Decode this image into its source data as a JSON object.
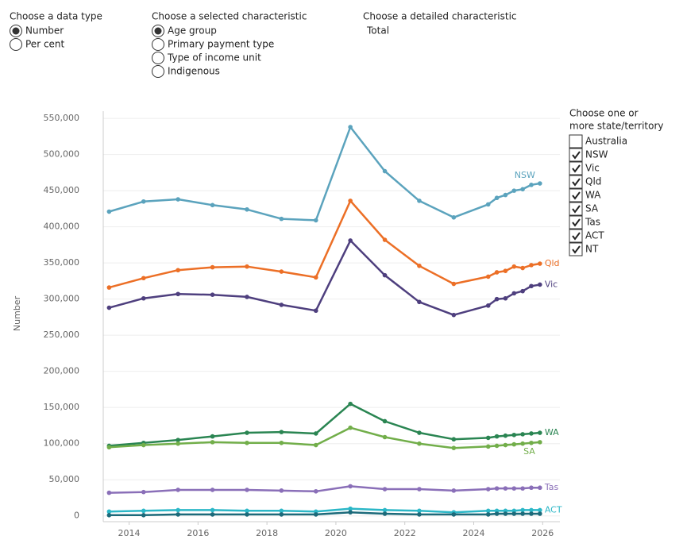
{
  "controls": {
    "data_type": {
      "title": "Choose a data type",
      "options": [
        "Number",
        "Per cent"
      ],
      "selected": 0
    },
    "characteristic": {
      "title": "Choose a selected characteristic",
      "options": [
        "Age group",
        "Primary payment type",
        "Type of income unit",
        "Indigenous"
      ],
      "selected": 0
    },
    "detailed": {
      "title": "Choose a detailed characteristic",
      "value": "Total"
    },
    "states": {
      "title_lines": [
        "Choose one or",
        "more state/territory"
      ],
      "all_option": "Australia",
      "all_checked": false
    }
  },
  "chart_data": {
    "type": "line",
    "y_label": "Number",
    "grid": true,
    "x": [
      2013.42,
      2014.42,
      2015.42,
      2016.42,
      2017.42,
      2018.42,
      2019.42,
      2020.42,
      2021.42,
      2022.42,
      2023.42,
      2024.42,
      2024.67,
      2024.92,
      2025.17,
      2025.42,
      2025.67,
      2025.92
    ],
    "xlim": [
      2013.25,
      2026.5
    ],
    "xticks": [
      2014,
      2016,
      2018,
      2020,
      2022,
      2024,
      2026
    ],
    "ylim": [
      -8000,
      560000
    ],
    "yticks": [
      0,
      {
        "value": 50000,
        "label": "50,000"
      },
      {
        "value": 100000,
        "label": "100,000"
      },
      {
        "value": 150000,
        "label": "150,000"
      },
      {
        "value": 200000,
        "label": "200,000"
      },
      {
        "value": 250000,
        "label": "250,000"
      },
      {
        "value": 300000,
        "label": "300,000"
      },
      {
        "value": 350000,
        "label": "350,000"
      },
      {
        "value": 400000,
        "label": "400,000"
      },
      {
        "value": 450000,
        "label": "450,000"
      },
      {
        "value": 500000,
        "label": "500,000"
      },
      {
        "value": 550000,
        "label": "550,000"
      }
    ],
    "series": [
      {
        "name": "NSW",
        "color": "#5ba3bd",
        "checked": true,
        "end_label": true,
        "values": [
          421000,
          435000,
          438000,
          430000,
          424000,
          411000,
          409000,
          538000,
          477000,
          436000,
          413000,
          431000,
          440000,
          444000,
          450000,
          452000,
          458000,
          460000
        ]
      },
      {
        "name": "Vic",
        "color": "#4e3f7e",
        "checked": true,
        "end_label": true,
        "values": [
          288000,
          301000,
          307000,
          306000,
          303000,
          292000,
          284000,
          381000,
          333000,
          296000,
          278000,
          291000,
          300000,
          301000,
          308000,
          311000,
          318000,
          320000
        ]
      },
      {
        "name": "Qld",
        "color": "#ec6f26",
        "checked": true,
        "end_label": true,
        "values": [
          316000,
          329000,
          340000,
          344000,
          345000,
          338000,
          330000,
          436000,
          382000,
          346000,
          321000,
          331000,
          337000,
          339000,
          345000,
          343000,
          347000,
          349000
        ]
      },
      {
        "name": "WA",
        "color": "#2a8552",
        "checked": true,
        "end_label": true,
        "values": [
          97000,
          101000,
          105000,
          110000,
          115000,
          116000,
          114000,
          155000,
          131000,
          115000,
          106000,
          108000,
          110000,
          111000,
          112000,
          113000,
          114000,
          115000
        ]
      },
      {
        "name": "SA",
        "color": "#72ae4a",
        "checked": true,
        "end_label": true,
        "values": [
          95000,
          98000,
          100000,
          102000,
          101000,
          101000,
          98000,
          122000,
          109000,
          100000,
          94000,
          96000,
          97000,
          98000,
          99000,
          100000,
          101000,
          102000
        ]
      },
      {
        "name": "Tas",
        "color": "#8a6fb8",
        "checked": true,
        "end_label": true,
        "values": [
          32000,
          33000,
          36000,
          36000,
          36000,
          35000,
          34000,
          41000,
          37000,
          37000,
          35000,
          37000,
          38000,
          38000,
          38000,
          38000,
          39000,
          39000
        ]
      },
      {
        "name": "ACT",
        "color": "#2bb7c7",
        "checked": true,
        "end_label": true,
        "values": [
          6000,
          7000,
          8000,
          8000,
          7000,
          7000,
          6000,
          10000,
          8000,
          7000,
          5000,
          7000,
          7000,
          7000,
          7000,
          8000,
          8000,
          8000
        ]
      },
      {
        "name": "NT",
        "color": "#1c6a7a",
        "checked": true,
        "end_label": false,
        "values": [
          1000,
          1000,
          2000,
          2000,
          2000,
          2000,
          2000,
          5000,
          3000,
          2000,
          2000,
          2000,
          3000,
          3000,
          3000,
          3000,
          3000,
          3000
        ]
      }
    ]
  }
}
